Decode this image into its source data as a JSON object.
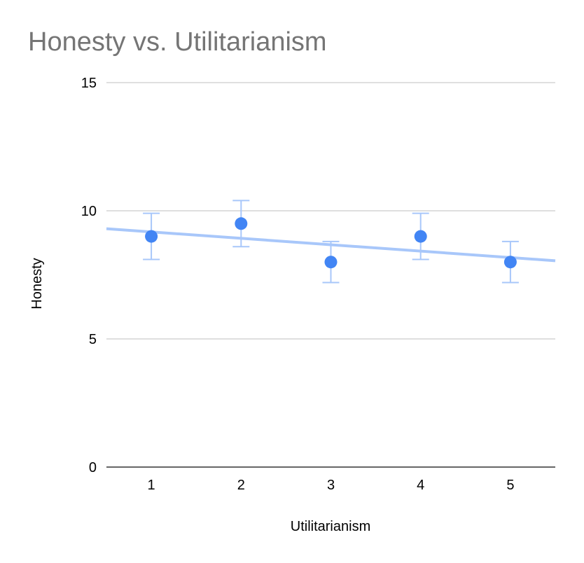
{
  "chart_data": {
    "type": "scatter",
    "title": "Honesty vs. Utilitarianism",
    "xlabel": "Utilitarianism",
    "ylabel": "Honesty",
    "xlim": [
      0.5,
      5.5
    ],
    "ylim": [
      0,
      15
    ],
    "x_ticks": [
      "1",
      "2",
      "3",
      "4",
      "5"
    ],
    "y_ticks": [
      "0",
      "5",
      "10",
      "15"
    ],
    "grid": true,
    "legend": "none",
    "points": [
      {
        "x": 1,
        "y": 9.0,
        "err_low": 8.1,
        "err_high": 9.9
      },
      {
        "x": 2,
        "y": 9.5,
        "err_low": 8.6,
        "err_high": 10.4
      },
      {
        "x": 3,
        "y": 8.0,
        "err_low": 7.2,
        "err_high": 8.8
      },
      {
        "x": 4,
        "y": 9.0,
        "err_low": 8.1,
        "err_high": 9.9
      },
      {
        "x": 5,
        "y": 8.0,
        "err_low": 7.2,
        "err_high": 8.8
      }
    ],
    "trendline": {
      "type": "linear",
      "x_start": 0.5,
      "y_start": 9.3,
      "x_end": 5.5,
      "y_end": 8.05
    },
    "colors": {
      "point": "#4285f4",
      "error_bar": "#a8c7fa",
      "trendline": "#a8c7fa",
      "grid": "#cccccc",
      "axis": "#333333",
      "title": "#757575"
    }
  }
}
